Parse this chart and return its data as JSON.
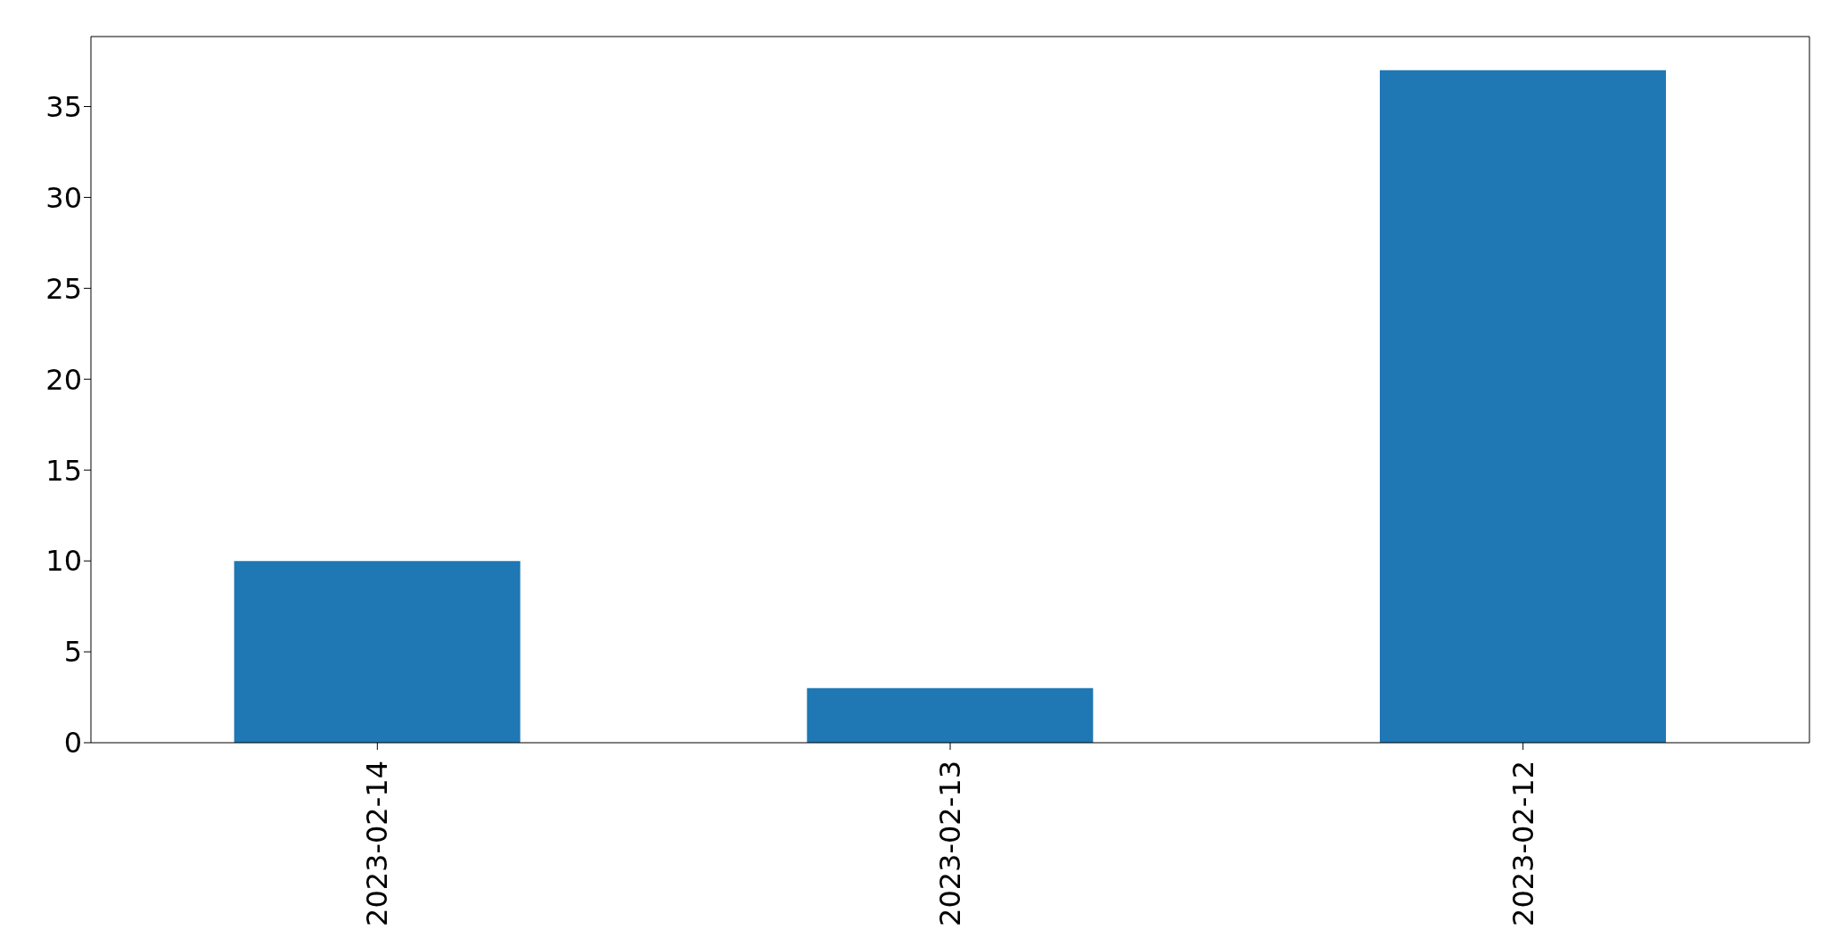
{
  "chart_data": {
    "type": "bar",
    "categories": [
      "2023-02-14",
      "2023-02-13",
      "2023-02-12"
    ],
    "values": [
      10,
      3,
      37
    ],
    "color": "#1f77b4",
    "ylim": [
      0,
      38.85
    ],
    "yticks": [
      0,
      5,
      10,
      15,
      20,
      25,
      30,
      35
    ]
  }
}
